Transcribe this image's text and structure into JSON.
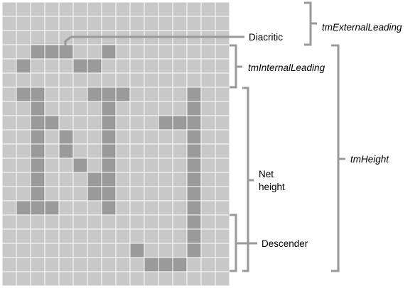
{
  "colors": {
    "grid_fill": "#c8c8c8",
    "grid_line": "#ffffff",
    "pixel_on": "#9a9a9a",
    "bracket": "#999999",
    "leader_line": "#999999",
    "text": "#000000"
  },
  "grid": {
    "columns": 16,
    "rows": 20,
    "filled_cells": [
      [
        3,
        2
      ],
      [
        3,
        3
      ],
      [
        3,
        4
      ],
      [
        3,
        7
      ],
      [
        4,
        1
      ],
      [
        4,
        5
      ],
      [
        4,
        6
      ],
      [
        6,
        1
      ],
      [
        6,
        2
      ],
      [
        6,
        6
      ],
      [
        6,
        7
      ],
      [
        6,
        8
      ],
      [
        6,
        13
      ],
      [
        7,
        2
      ],
      [
        7,
        7
      ],
      [
        7,
        13
      ],
      [
        8,
        2
      ],
      [
        8,
        3
      ],
      [
        8,
        7
      ],
      [
        8,
        11
      ],
      [
        8,
        12
      ],
      [
        8,
        13
      ],
      [
        9,
        2
      ],
      [
        9,
        4
      ],
      [
        9,
        7
      ],
      [
        9,
        13
      ],
      [
        10,
        2
      ],
      [
        10,
        4
      ],
      [
        10,
        7
      ],
      [
        10,
        13
      ],
      [
        11,
        2
      ],
      [
        11,
        5
      ],
      [
        11,
        7
      ],
      [
        11,
        13
      ],
      [
        12,
        2
      ],
      [
        12,
        6
      ],
      [
        12,
        7
      ],
      [
        12,
        13
      ],
      [
        13,
        2
      ],
      [
        13,
        6
      ],
      [
        13,
        7
      ],
      [
        13,
        13
      ],
      [
        14,
        1
      ],
      [
        14,
        2
      ],
      [
        14,
        3
      ],
      [
        14,
        7
      ],
      [
        14,
        13
      ],
      [
        15,
        13
      ],
      [
        16,
        13
      ],
      [
        17,
        9
      ],
      [
        17,
        13
      ],
      [
        18,
        10
      ],
      [
        18,
        11
      ],
      [
        18,
        12
      ]
    ]
  },
  "labels": {
    "diacritic": "Diacritic",
    "tm_external_leading": "tmExternalLeading",
    "tm_internal_leading": "tmInternalLeading",
    "tm_height": "tmHeight",
    "net_height_line1": "Net",
    "net_height_line2": "height",
    "descender": "Descender"
  }
}
